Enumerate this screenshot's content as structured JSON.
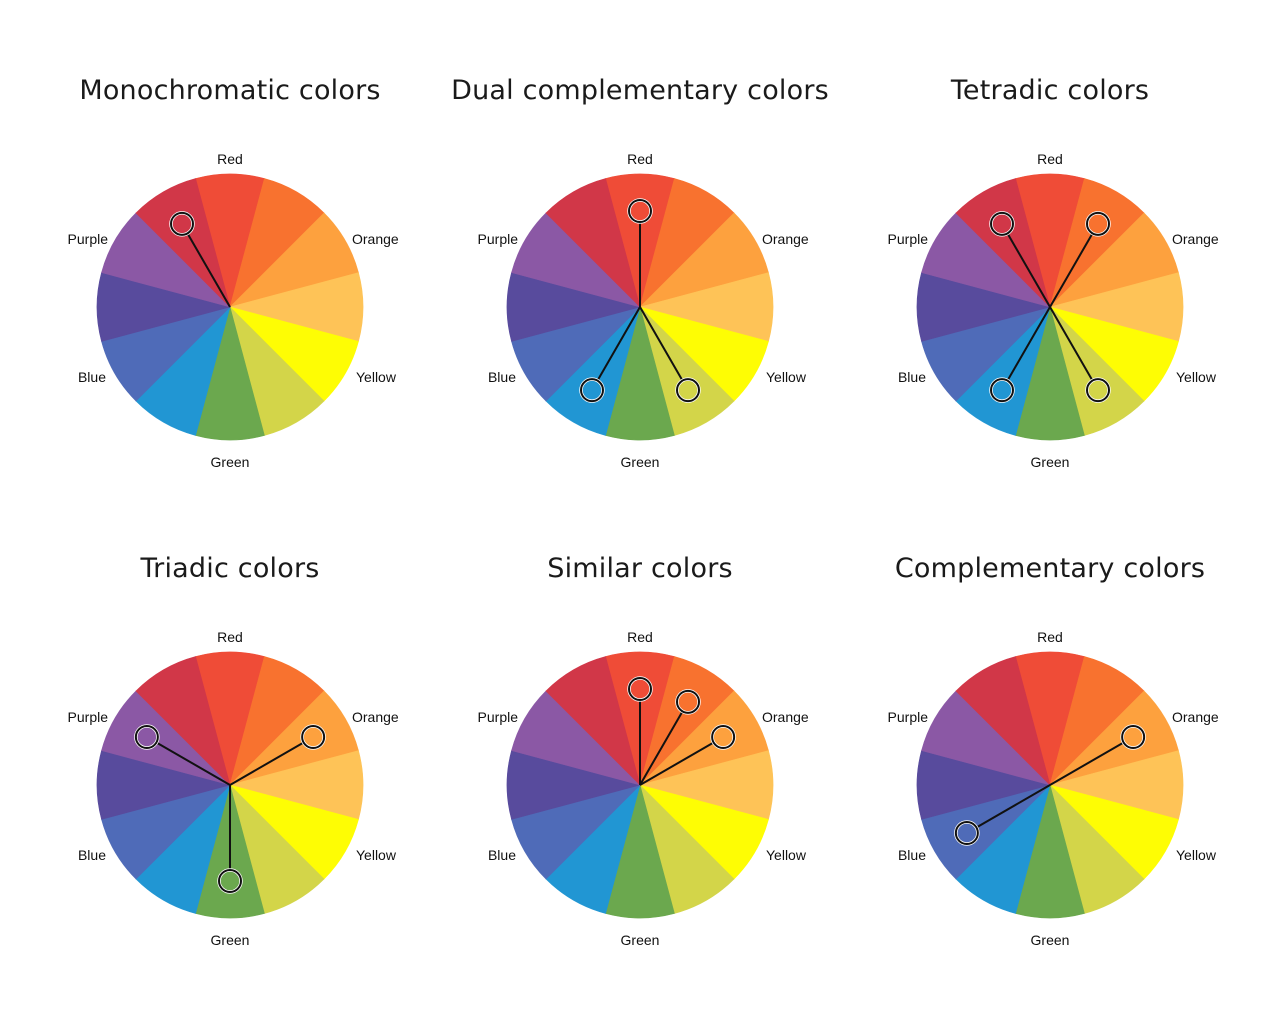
{
  "wheel": {
    "segment_colors": [
      "#ef4c37",
      "#f8722f",
      "#fda13e",
      "#fec357",
      "#fefd04",
      "#d3d549",
      "#6ba84e",
      "#2196d3",
      "#4f6bb8",
      "#584b9d",
      "#8b58a5",
      "#d13748"
    ],
    "labels": {
      "red": "Red",
      "orange": "Orange",
      "yellow": "Yellow",
      "green": "Green",
      "blue": "Blue",
      "purple": "Purple"
    }
  },
  "panels": [
    {
      "id": "monochromatic",
      "title": "Monochromatic colors",
      "markers": [
        {
          "segment": 11,
          "color": "#d13748"
        }
      ]
    },
    {
      "id": "dual-complementary",
      "title": "Dual complementary colors",
      "markers": [
        {
          "segment": 0,
          "color": "#ef4c37"
        },
        {
          "segment": 5,
          "color": "#d3d549"
        },
        {
          "segment": 7,
          "color": "#2196d3"
        }
      ]
    },
    {
      "id": "tetradic",
      "title": "Tetradic colors",
      "markers": [
        {
          "segment": 11,
          "color": "#d13748"
        },
        {
          "segment": 1,
          "color": "#f8722f"
        },
        {
          "segment": 5,
          "color": "#d3d549"
        },
        {
          "segment": 7,
          "color": "#2196d3"
        }
      ]
    },
    {
      "id": "triadic",
      "title": "Triadic colors",
      "markers": [
        {
          "segment": 10,
          "color": "#8b58a5"
        },
        {
          "segment": 2,
          "color": "#fda13e"
        },
        {
          "segment": 6,
          "color": "#6ba84e"
        }
      ]
    },
    {
      "id": "similar",
      "title": "Similar colors",
      "markers": [
        {
          "segment": 0,
          "color": "#ef4c37"
        },
        {
          "segment": 1,
          "color": "#f8722f"
        },
        {
          "segment": 2,
          "color": "#fda13e"
        }
      ]
    },
    {
      "id": "complementary",
      "title": "Complementary colors",
      "markers": [
        {
          "segment": 2,
          "color": "#fda13e"
        },
        {
          "segment": 8,
          "color": "#4f6bb8"
        }
      ]
    }
  ]
}
